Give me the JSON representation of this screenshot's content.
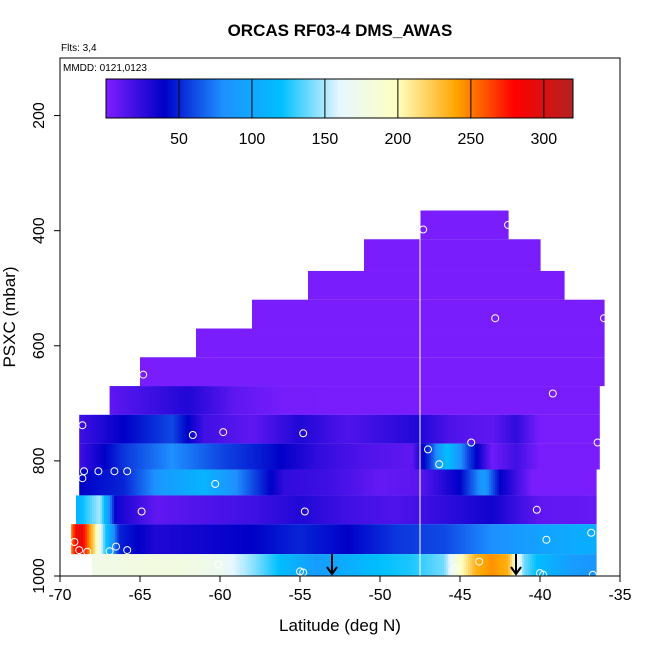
{
  "chart_data": {
    "type": "heatmap",
    "title": "ORCAS RF03-4 DMS_AWAS",
    "note_flights": "Flts: 3,4",
    "note_dates": "MMDD: 0121,0123",
    "xlabel": "Latitude (deg N)",
    "ylabel": "PSXC (mbar)",
    "xlim": [
      -70,
      -35
    ],
    "ylim": [
      1000,
      100
    ],
    "x_ticks": [
      -70,
      -65,
      -60,
      -55,
      -50,
      -45,
      -40,
      -35
    ],
    "y_ticks": [
      200,
      400,
      600,
      800,
      1000
    ],
    "colorbar": {
      "range": [
        0,
        320
      ],
      "ticks": [
        50,
        100,
        150,
        200,
        250,
        300
      ],
      "colors": [
        "#7f1fff",
        "#0000c8",
        "#1e90ff",
        "#00bfff",
        "#e6f7ff",
        "#ffffc0",
        "#ffa500",
        "#ff0000",
        "#b22222"
      ]
    },
    "vertical_line_lat": -47.5,
    "arrows_lat": [
      -53,
      -41.5
    ],
    "layers": [
      {
        "p_top": 365,
        "p_bot": 415,
        "lat_from": -47.5,
        "lat_to": -42.0,
        "values": [
          [
            -47.5,
            2
          ],
          [
            -42.0,
            2
          ]
        ]
      },
      {
        "p_top": 415,
        "p_bot": 470,
        "lat_from": -51.0,
        "lat_to": -40.0,
        "values": [
          [
            -51.0,
            2
          ],
          [
            -40.0,
            2
          ]
        ]
      },
      {
        "p_top": 470,
        "p_bot": 520,
        "lat_from": -54.5,
        "lat_to": -38.5,
        "values": [
          [
            -54.5,
            2
          ],
          [
            -38.5,
            2
          ]
        ]
      },
      {
        "p_top": 520,
        "p_bot": 570,
        "lat_from": -58.0,
        "lat_to": -36.0,
        "values": [
          [
            -58.0,
            2
          ],
          [
            -36.0,
            2
          ]
        ]
      },
      {
        "p_top": 570,
        "p_bot": 620,
        "lat_from": -61.5,
        "lat_to": -36.0,
        "values": [
          [
            -61.5,
            2
          ],
          [
            -36.0,
            2
          ]
        ]
      },
      {
        "p_top": 620,
        "p_bot": 670,
        "lat_from": -65.0,
        "lat_to": -36.0,
        "values": [
          [
            -65.0,
            2
          ],
          [
            -36.0,
            2
          ]
        ]
      },
      {
        "p_top": 670,
        "p_bot": 720,
        "lat_from": -66.9,
        "lat_to": -36.3,
        "values": [
          [
            -66.9,
            10
          ],
          [
            -64.5,
            20
          ],
          [
            -62.0,
            30
          ],
          [
            -59.0,
            10
          ],
          [
            -56.0,
            3
          ],
          [
            -53.0,
            2
          ],
          [
            -36.3,
            2
          ]
        ]
      },
      {
        "p_top": 720,
        "p_bot": 770,
        "lat_from": -68.8,
        "lat_to": -36.3,
        "values": [
          [
            -68.8,
            20
          ],
          [
            -66.0,
            40
          ],
          [
            -63.0,
            60
          ],
          [
            -61.0,
            20
          ],
          [
            -58.0,
            10
          ],
          [
            -55.0,
            30
          ],
          [
            -52.0,
            15
          ],
          [
            -49.0,
            25
          ],
          [
            -47.5,
            30
          ],
          [
            -45.5,
            15
          ],
          [
            -43.0,
            10
          ],
          [
            -41.5,
            25
          ],
          [
            -40.0,
            2
          ],
          [
            -36.3,
            2
          ]
        ]
      },
      {
        "p_top": 770,
        "p_bot": 815,
        "lat_from": -68.8,
        "lat_to": -36.3,
        "values": [
          [
            -68.8,
            20
          ],
          [
            -66.0,
            55
          ],
          [
            -63.0,
            80
          ],
          [
            -60.0,
            60
          ],
          [
            -57.0,
            45
          ],
          [
            -54.0,
            25
          ],
          [
            -51.0,
            15
          ],
          [
            -48.0,
            10
          ],
          [
            -46.8,
            60
          ],
          [
            -45.8,
            120
          ],
          [
            -44.5,
            60
          ],
          [
            -43.0,
            5
          ],
          [
            -41.5,
            20
          ],
          [
            -40.0,
            2
          ],
          [
            -36.3,
            2
          ]
        ]
      },
      {
        "p_top": 815,
        "p_bot": 860,
        "lat_from": -68.8,
        "lat_to": -36.5,
        "values": [
          [
            -68.8,
            40
          ],
          [
            -66.0,
            50
          ],
          [
            -63.5,
            90
          ],
          [
            -61.0,
            110
          ],
          [
            -59.0,
            80
          ],
          [
            -56.0,
            25
          ],
          [
            -53.0,
            20
          ],
          [
            -50.0,
            8
          ],
          [
            -47.5,
            12
          ],
          [
            -45.0,
            40
          ],
          [
            -43.5,
            90
          ],
          [
            -42.5,
            40
          ],
          [
            -40.5,
            2
          ],
          [
            -36.5,
            2
          ]
        ]
      },
      {
        "p_top": 860,
        "p_bot": 910,
        "lat_from": -69.0,
        "lat_to": -36.5,
        "values": [
          [
            -69.0,
            110
          ],
          [
            -67.5,
            150
          ],
          [
            -66.5,
            35
          ],
          [
            -64.0,
            10
          ],
          [
            -61.0,
            15
          ],
          [
            -58.0,
            20
          ],
          [
            -55.0,
            30
          ],
          [
            -52.0,
            20
          ],
          [
            -49.0,
            15
          ],
          [
            -46.0,
            25
          ],
          [
            -43.0,
            35
          ],
          [
            -40.0,
            10
          ],
          [
            -36.5,
            8
          ]
        ]
      },
      {
        "p_top": 910,
        "p_bot": 962,
        "lat_from": -69.3,
        "lat_to": -36.5,
        "values": [
          [
            -69.3,
            250
          ],
          [
            -68.8,
            300
          ],
          [
            -68.3,
            260
          ],
          [
            -67.8,
            210
          ],
          [
            -67.2,
            130
          ],
          [
            -66.3,
            50
          ],
          [
            -64.0,
            30
          ],
          [
            -61.0,
            35
          ],
          [
            -58.0,
            40
          ],
          [
            -55.0,
            50
          ],
          [
            -52.0,
            40
          ],
          [
            -49.0,
            55
          ],
          [
            -46.0,
            60
          ],
          [
            -43.0,
            80
          ],
          [
            -40.0,
            95
          ],
          [
            -37.5,
            105
          ],
          [
            -36.5,
            105
          ]
        ]
      },
      {
        "p_top": 962,
        "p_bot": 1000,
        "lat_from": -68.0,
        "lat_to": -36.5,
        "values": [
          [
            -68.0,
            175
          ],
          [
            -66.0,
            178
          ],
          [
            -64.0,
            180
          ],
          [
            -62.0,
            178
          ],
          [
            -60.0,
            170
          ],
          [
            -58.0,
            145
          ],
          [
            -56.0,
            115
          ],
          [
            -54.0,
            90
          ],
          [
            -52.0,
            105
          ],
          [
            -50.0,
            120
          ],
          [
            -48.0,
            125
          ],
          [
            -46.0,
            140
          ],
          [
            -45.0,
            195
          ],
          [
            -44.0,
            235
          ],
          [
            -43.0,
            245
          ],
          [
            -42.0,
            235
          ],
          [
            -41.0,
            140
          ],
          [
            -40.0,
            115
          ],
          [
            -38.0,
            90
          ],
          [
            -36.5,
            85
          ]
        ]
      }
    ],
    "samples": [
      [
        -47.3,
        398
      ],
      [
        -42.0,
        390
      ],
      [
        -42.8,
        552
      ],
      [
        -36.0,
        552
      ],
      [
        -39.2,
        683
      ],
      [
        -64.8,
        650
      ],
      [
        -68.6,
        738
      ],
      [
        -61.7,
        755
      ],
      [
        -59.8,
        750
      ],
      [
        -54.8,
        752
      ],
      [
        -44.3,
        768
      ],
      [
        -36.4,
        768
      ],
      [
        -47.0,
        780
      ],
      [
        -46.3,
        806
      ],
      [
        -68.5,
        818
      ],
      [
        -67.6,
        818
      ],
      [
        -66.6,
        818
      ],
      [
        -65.8,
        818
      ],
      [
        -68.6,
        830
      ],
      [
        -60.3,
        840
      ],
      [
        -64.9,
        888
      ],
      [
        -54.7,
        888
      ],
      [
        -40.2,
        885
      ],
      [
        -39.6,
        937
      ],
      [
        -36.8,
        925
      ],
      [
        -69.1,
        941
      ],
      [
        -68.8,
        955
      ],
      [
        -68.3,
        958
      ],
      [
        -66.9,
        957
      ],
      [
        -66.5,
        949
      ],
      [
        -65.8,
        955
      ],
      [
        -60.1,
        980
      ],
      [
        -55.0,
        992
      ],
      [
        -54.8,
        994
      ],
      [
        -45.3,
        987
      ],
      [
        -43.8,
        975
      ],
      [
        -40.0,
        995
      ],
      [
        -39.8,
        998
      ],
      [
        -36.7,
        998
      ]
    ]
  }
}
